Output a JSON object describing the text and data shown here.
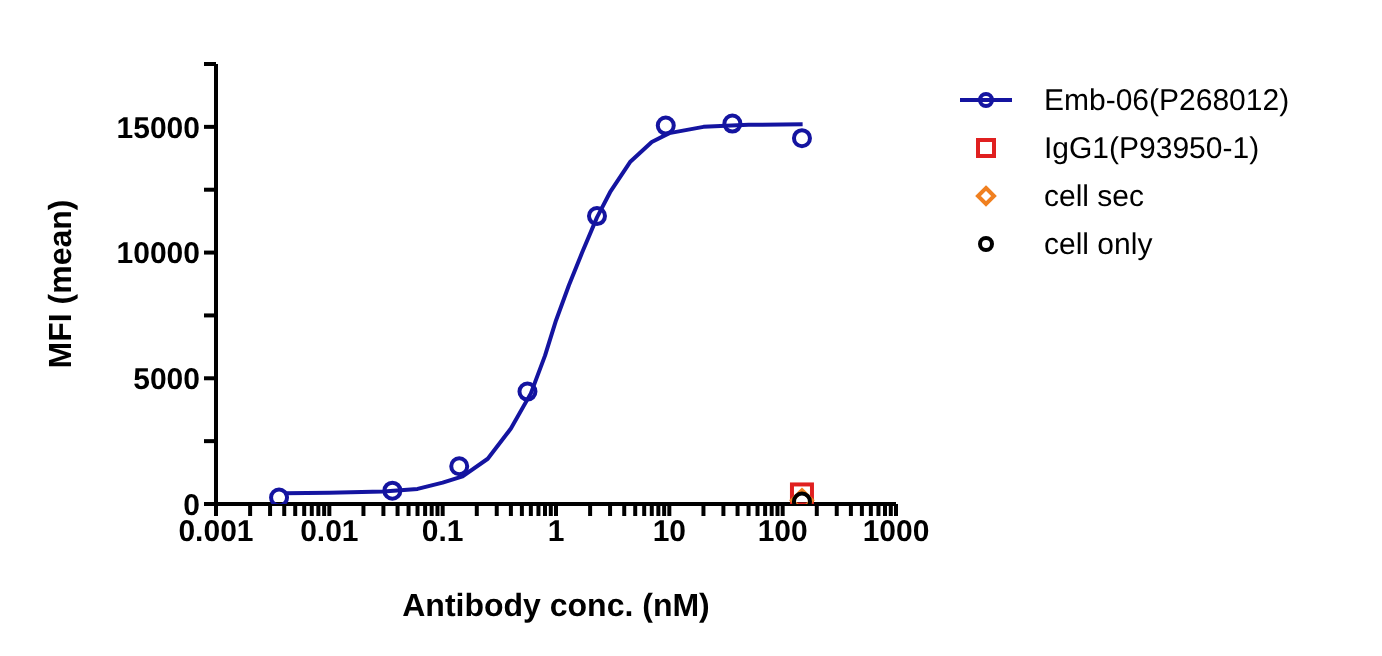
{
  "chart_data": {
    "type": "scatter",
    "xlabel": "Antibody conc. (nM)",
    "ylabel": "MFI (mean)",
    "log": "x",
    "grid": false,
    "legend": "right",
    "xlim": [
      0.001,
      1000
    ],
    "xticks": [
      {
        "value": 0.001,
        "label": "0.001"
      },
      {
        "value": 0.002,
        "label": null
      },
      {
        "value": 0.003,
        "label": null
      },
      {
        "value": 0.004,
        "label": null
      },
      {
        "value": 0.005,
        "label": null
      },
      {
        "value": 0.006,
        "label": null
      },
      {
        "value": 0.007,
        "label": null
      },
      {
        "value": 0.008,
        "label": null
      },
      {
        "value": 0.009,
        "label": null
      },
      {
        "value": 0.01,
        "label": "0.01"
      },
      {
        "value": 0.02,
        "label": null
      },
      {
        "value": 0.03,
        "label": null
      },
      {
        "value": 0.04,
        "label": null
      },
      {
        "value": 0.05,
        "label": null
      },
      {
        "value": 0.06,
        "label": null
      },
      {
        "value": 0.07,
        "label": null
      },
      {
        "value": 0.08,
        "label": null
      },
      {
        "value": 0.09,
        "label": null
      },
      {
        "value": 0.1,
        "label": "0.1"
      },
      {
        "value": 0.2,
        "label": null
      },
      {
        "value": 0.3,
        "label": null
      },
      {
        "value": 0.4,
        "label": null
      },
      {
        "value": 0.5,
        "label": null
      },
      {
        "value": 0.6,
        "label": null
      },
      {
        "value": 0.7,
        "label": null
      },
      {
        "value": 0.8,
        "label": null
      },
      {
        "value": 0.9,
        "label": null
      },
      1,
      {
        "value": 2,
        "label": null
      },
      {
        "value": 3,
        "label": null
      },
      {
        "value": 4,
        "label": null
      },
      {
        "value": 5,
        "label": null
      },
      {
        "value": 6,
        "label": null
      },
      {
        "value": 7,
        "label": null
      },
      {
        "value": 8,
        "label": null
      },
      {
        "value": 9,
        "label": null
      },
      10,
      {
        "value": 20,
        "label": null
      },
      {
        "value": 30,
        "label": null
      },
      {
        "value": 40,
        "label": null
      },
      {
        "value": 50,
        "label": null
      },
      {
        "value": 60,
        "label": null
      },
      {
        "value": 70,
        "label": null
      },
      {
        "value": 80,
        "label": null
      },
      {
        "value": 90,
        "label": null
      },
      100,
      {
        "value": 200,
        "label": null
      },
      {
        "value": 300,
        "label": null
      },
      {
        "value": 400,
        "label": null
      },
      {
        "value": 500,
        "label": null
      },
      {
        "value": 600,
        "label": null
      },
      {
        "value": 700,
        "label": null
      },
      {
        "value": 800,
        "label": null
      },
      {
        "value": 900,
        "label": null
      },
      1000
    ],
    "ylim": [
      0,
      17500
    ],
    "yticks": [
      0,
      {
        "value": 2500,
        "label": null
      },
      5000,
      {
        "value": 7500,
        "label": null
      },
      10000,
      {
        "value": 12500,
        "label": null
      },
      15000,
      {
        "value": 17500,
        "label": null
      }
    ],
    "series": [
      {
        "type": "line",
        "color": "#1414a0",
        "marker": "none",
        "x": [
          0.004,
          0.01,
          0.03,
          0.06,
          0.1,
          0.15,
          0.25,
          0.4,
          0.6,
          0.8,
          1,
          1.3,
          1.7,
          2.3,
          3,
          4.5,
          7,
          10,
          20,
          50,
          150
        ],
        "values": [
          430,
          450,
          500,
          600,
          850,
          1100,
          1800,
          3000,
          4400,
          5900,
          7300,
          8700,
          10000,
          11400,
          12400,
          13600,
          14400,
          14750,
          15000,
          15080,
          15100
        ]
      },
      {
        "name": "Emb-06(P268012)",
        "color": "#1414a0",
        "marker": "circle",
        "x": [
          0.0036,
          0.036,
          0.14,
          0.56,
          2.3,
          9.3,
          36,
          148
        ],
        "values": [
          260,
          530,
          1500,
          4470,
          11450,
          15050,
          15130,
          14550
        ]
      },
      {
        "name": "IgG1(P93950-1)",
        "color": "#e02020",
        "marker": "square",
        "x": [
          148
        ],
        "values": [
          380
        ]
      },
      {
        "name": "cell sec",
        "color": "#f08020",
        "marker": "diamond",
        "x": [
          148
        ],
        "values": [
          150
        ]
      },
      {
        "name": "cell only",
        "color": "#000000",
        "marker": "circle",
        "x": [
          148
        ],
        "values": [
          100
        ]
      }
    ]
  }
}
